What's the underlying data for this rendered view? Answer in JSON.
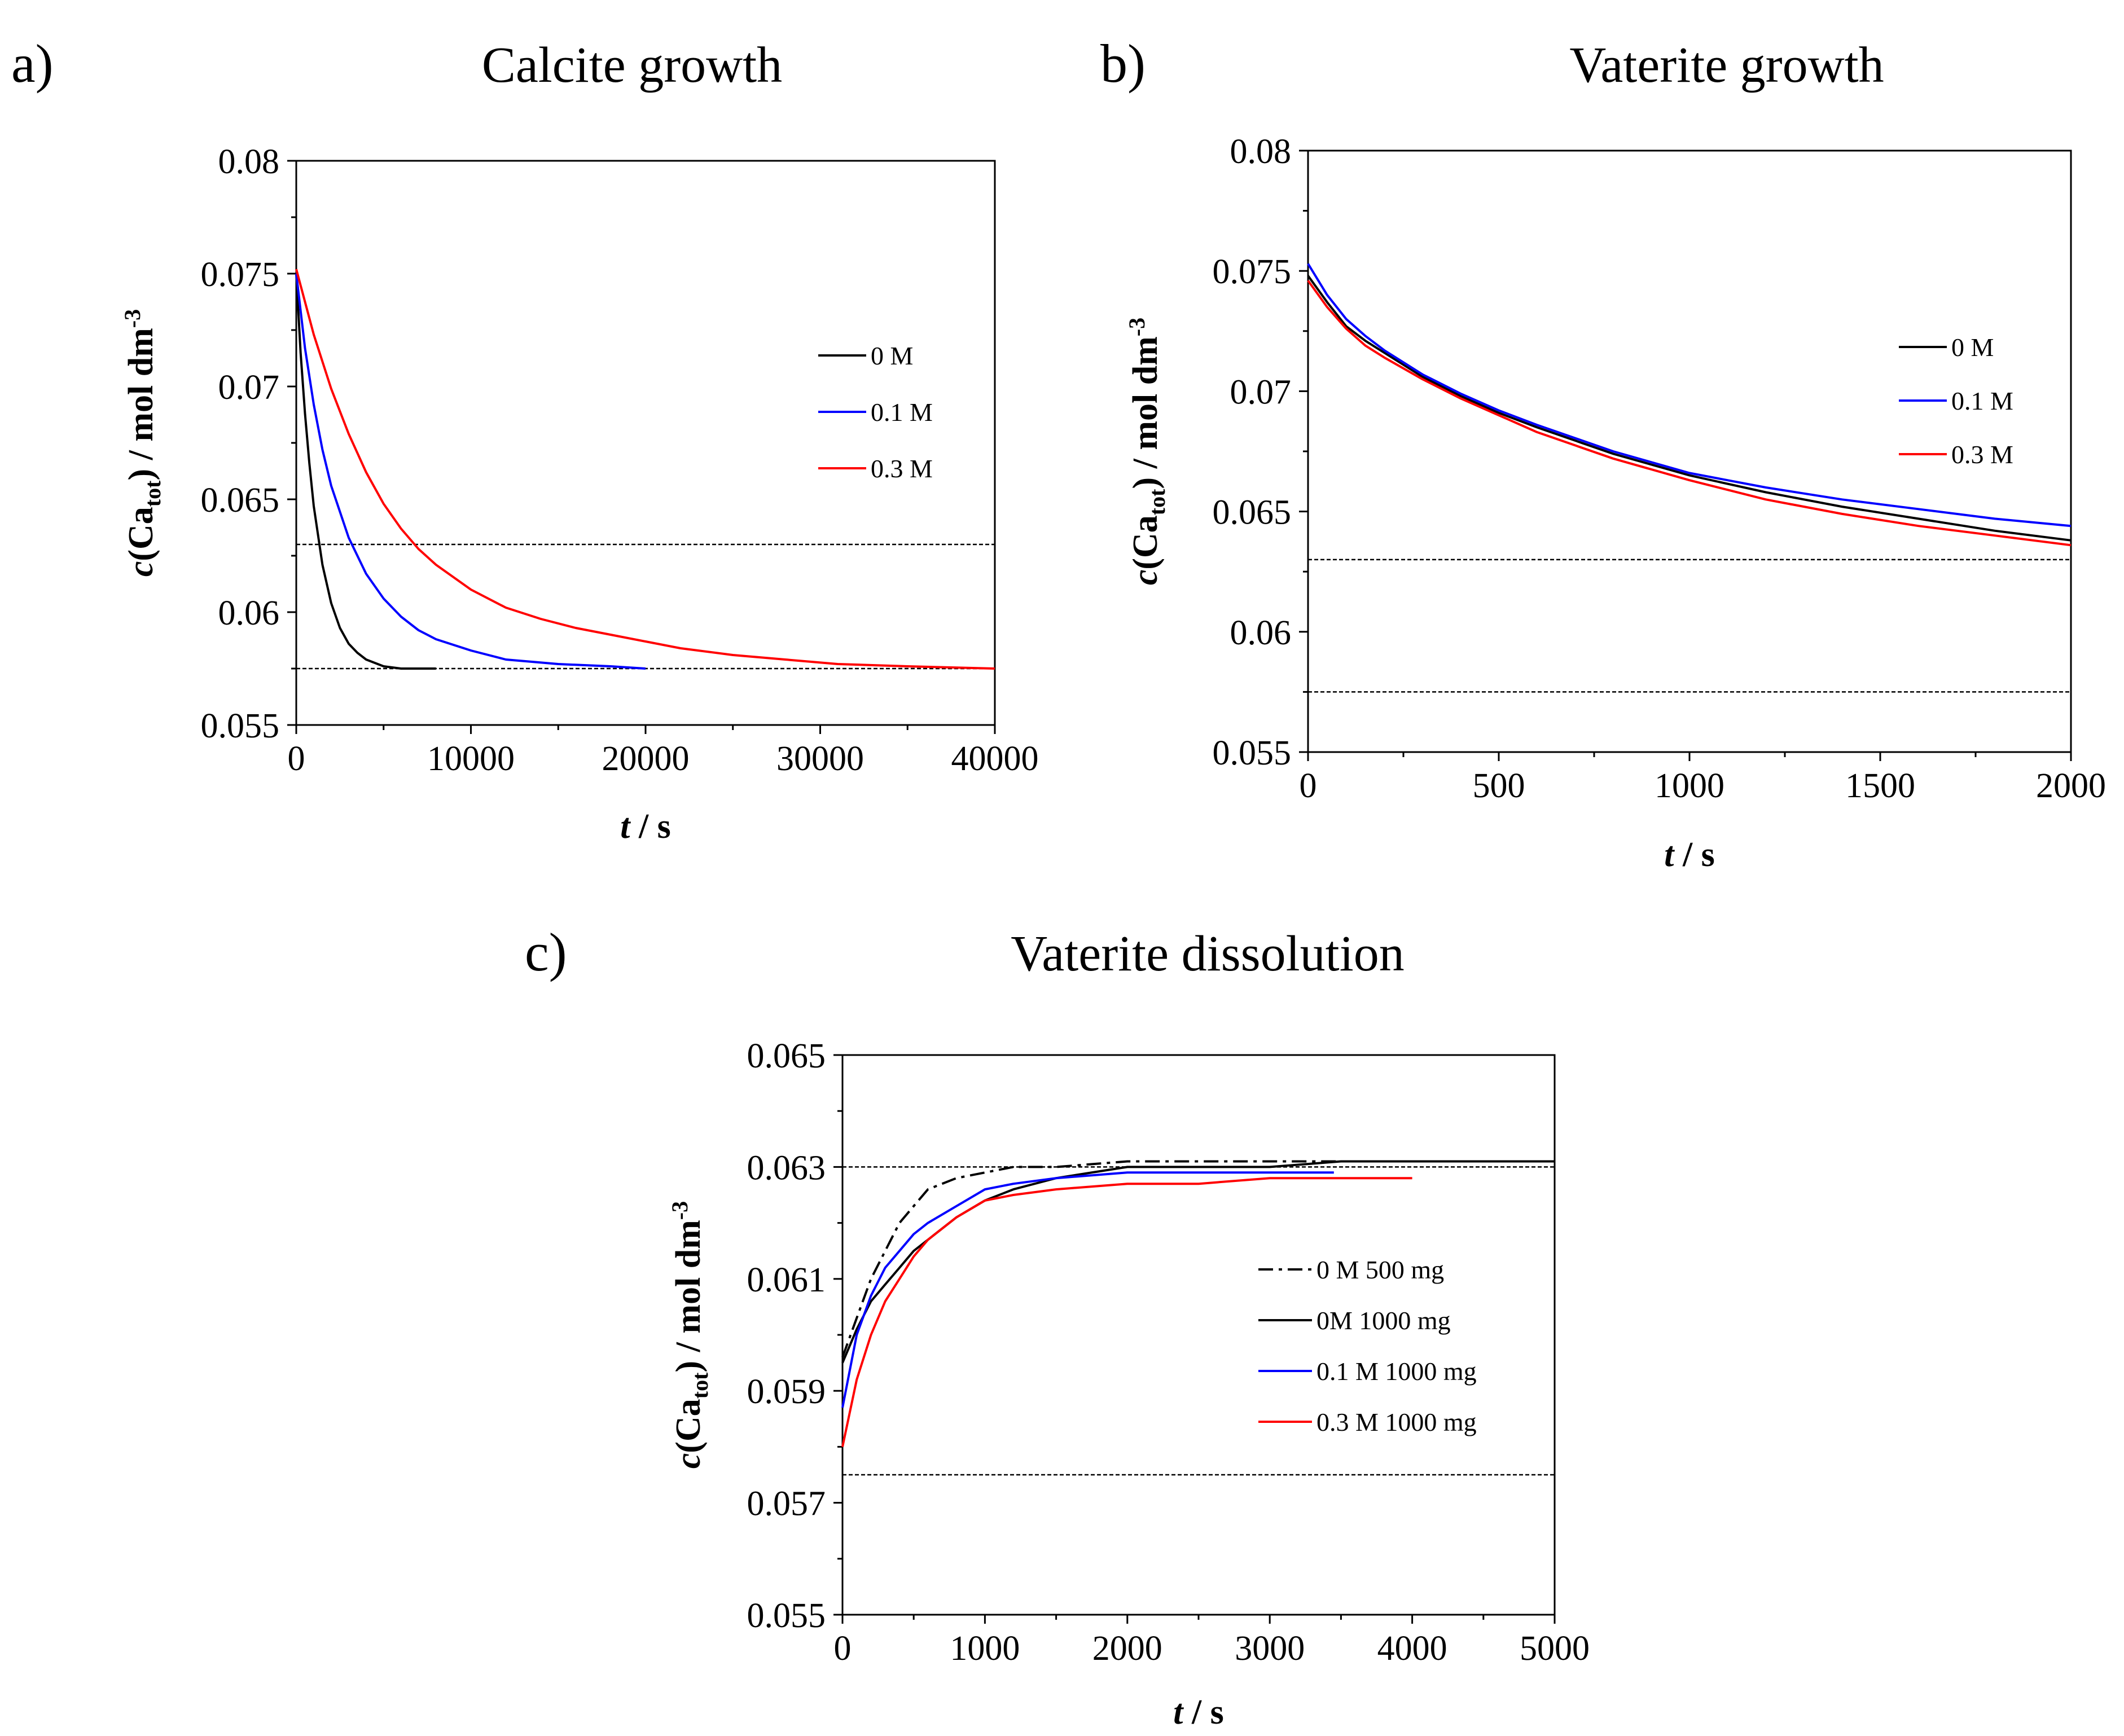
{
  "chart_data": [
    {
      "id": "a",
      "type": "line",
      "panel_label": "a)",
      "title": "Calcite growth",
      "xlabel": "t / s",
      "ylabel": "c(Ca_tot) / mol dm^-3",
      "xlim": [
        0,
        40000
      ],
      "ylim": [
        0.055,
        0.08
      ],
      "xticks": [
        "0",
        "10000",
        "20000",
        "30000",
        "40000"
      ],
      "yticks": [
        "0.055",
        "0.06",
        "0.065",
        "0.07",
        "0.075",
        "0.08"
      ],
      "legend_position": "right-middle",
      "reference_lines": [
        0.063,
        0.0575
      ],
      "series": [
        {
          "name": "0 M",
          "color": "#000000",
          "dash": "solid",
          "x": [
            0,
            250,
            500,
            750,
            1000,
            1500,
            2000,
            2500,
            3000,
            3500,
            4000,
            5000,
            6000,
            7000,
            8000
          ],
          "y": [
            0.075,
            0.0715,
            0.0688,
            0.0666,
            0.0647,
            0.0621,
            0.0604,
            0.0593,
            0.0586,
            0.0582,
            0.0579,
            0.0576,
            0.0575,
            0.0575,
            0.0575
          ]
        },
        {
          "name": "0.1 M",
          "color": "#0000ff",
          "dash": "solid",
          "x": [
            0,
            500,
            1000,
            1500,
            2000,
            3000,
            4000,
            5000,
            6000,
            7000,
            8000,
            10000,
            12000,
            15000,
            18000,
            20000
          ],
          "y": [
            0.075,
            0.0717,
            0.0692,
            0.0672,
            0.0656,
            0.0633,
            0.0617,
            0.0606,
            0.0598,
            0.0592,
            0.0588,
            0.0583,
            0.0579,
            0.0577,
            0.0576,
            0.0575
          ]
        },
        {
          "name": "0.3 M",
          "color": "#ff0000",
          "dash": "solid",
          "x": [
            0,
            1000,
            2000,
            3000,
            4000,
            5000,
            6000,
            7000,
            8000,
            10000,
            12000,
            14000,
            16000,
            18000,
            20000,
            22000,
            25000,
            28000,
            31000,
            35000,
            40000
          ],
          "y": [
            0.0752,
            0.0723,
            0.0699,
            0.0679,
            0.0662,
            0.0648,
            0.0637,
            0.0628,
            0.0621,
            0.061,
            0.0602,
            0.0597,
            0.0593,
            0.059,
            0.0587,
            0.0584,
            0.0581,
            0.0579,
            0.0577,
            0.0576,
            0.0575
          ]
        }
      ]
    },
    {
      "id": "b",
      "type": "line",
      "panel_label": "b)",
      "title": "Vaterite growth",
      "xlabel": "t / s",
      "ylabel": "c(Ca_tot) / mol dm^-3",
      "xlim": [
        0,
        2000
      ],
      "ylim": [
        0.055,
        0.08
      ],
      "xticks": [
        "0",
        "500",
        "1000",
        "1500",
        "2000"
      ],
      "yticks": [
        "0.055",
        "0.06",
        "0.065",
        "0.07",
        "0.075",
        "0.08"
      ],
      "legend_position": "right-middle",
      "reference_lines": [
        0.063,
        0.0575
      ],
      "series": [
        {
          "name": "0 M",
          "color": "#000000",
          "dash": "solid",
          "x": [
            0,
            50,
            100,
            150,
            200,
            300,
            400,
            500,
            600,
            800,
            1000,
            1200,
            1400,
            1600,
            1800,
            2000
          ],
          "y": [
            0.0748,
            0.0737,
            0.0727,
            0.0721,
            0.0716,
            0.0706,
            0.0698,
            0.0691,
            0.0685,
            0.0674,
            0.0665,
            0.0658,
            0.0652,
            0.0647,
            0.0642,
            0.0638
          ]
        },
        {
          "name": "0.1 M",
          "color": "#0000ff",
          "dash": "solid",
          "x": [
            0,
            50,
            100,
            150,
            200,
            300,
            400,
            500,
            600,
            800,
            1000,
            1200,
            1400,
            1600,
            1800,
            2000
          ],
          "y": [
            0.0753,
            0.074,
            0.073,
            0.0723,
            0.0717,
            0.0707,
            0.0699,
            0.0692,
            0.0686,
            0.0675,
            0.0666,
            0.066,
            0.0655,
            0.0651,
            0.0647,
            0.0644
          ]
        },
        {
          "name": "0.3 M",
          "color": "#ff0000",
          "dash": "solid",
          "x": [
            0,
            50,
            100,
            150,
            200,
            300,
            400,
            500,
            600,
            800,
            1000,
            1200,
            1400,
            1600,
            1800,
            2000
          ],
          "y": [
            0.0746,
            0.0735,
            0.0726,
            0.0719,
            0.0714,
            0.0705,
            0.0697,
            0.069,
            0.0683,
            0.0672,
            0.0663,
            0.0655,
            0.0649,
            0.0644,
            0.064,
            0.0636
          ]
        }
      ]
    },
    {
      "id": "c",
      "type": "line",
      "panel_label": "c)",
      "title": "Vaterite dissolution",
      "xlabel": "t / s",
      "ylabel": "c(Ca_tot) / mol dm^-3",
      "xlim": [
        0,
        5000
      ],
      "ylim": [
        0.055,
        0.065
      ],
      "xticks": [
        "0",
        "1000",
        "2000",
        "3000",
        "4000",
        "5000"
      ],
      "yticks": [
        "0.055",
        "0.057",
        "0.059",
        "0.061",
        "0.063",
        "0.065"
      ],
      "legend_position": "right-middle",
      "reference_lines": [
        0.063,
        0.0575
      ],
      "series": [
        {
          "name": "0 M 500 mg",
          "color": "#000000",
          "dash": "dashdot",
          "x": [
            0,
            100,
            200,
            300,
            400,
            500,
            600,
            800,
            1000,
            1200,
            1500,
            2000,
            2500,
            3000,
            3500
          ],
          "y": [
            0.0596,
            0.0603,
            0.061,
            0.0615,
            0.062,
            0.0623,
            0.0626,
            0.0628,
            0.0629,
            0.063,
            0.063,
            0.0631,
            0.0631,
            0.0631,
            0.0631
          ]
        },
        {
          "name": "0M 1000 mg",
          "color": "#000000",
          "dash": "solid",
          "x": [
            0,
            100,
            200,
            300,
            400,
            500,
            600,
            800,
            1000,
            1200,
            1500,
            2000,
            2500,
            3000,
            3500,
            4000,
            4500,
            5000
          ],
          "y": [
            0.0595,
            0.0601,
            0.0606,
            0.0609,
            0.0612,
            0.0615,
            0.0617,
            0.0621,
            0.0624,
            0.0626,
            0.0628,
            0.063,
            0.063,
            0.063,
            0.0631,
            0.0631,
            0.0631,
            0.0631
          ]
        },
        {
          "name": "0.1 M 1000 mg",
          "color": "#0000ff",
          "dash": "solid",
          "x": [
            0,
            100,
            200,
            300,
            400,
            500,
            600,
            800,
            1000,
            1200,
            1500,
            2000,
            2500,
            3000,
            3450
          ],
          "y": [
            0.0587,
            0.06,
            0.0607,
            0.0612,
            0.0615,
            0.0618,
            0.062,
            0.0623,
            0.0626,
            0.0627,
            0.0628,
            0.0629,
            0.0629,
            0.0629,
            0.0629
          ]
        },
        {
          "name": "0.3 M 1000 mg",
          "color": "#ff0000",
          "dash": "solid",
          "x": [
            0,
            100,
            200,
            300,
            400,
            500,
            600,
            800,
            1000,
            1200,
            1500,
            2000,
            2500,
            3000,
            3500,
            4000
          ],
          "y": [
            0.058,
            0.0592,
            0.06,
            0.0606,
            0.061,
            0.0614,
            0.0617,
            0.0621,
            0.0624,
            0.0625,
            0.0626,
            0.0627,
            0.0627,
            0.0628,
            0.0628,
            0.0628
          ]
        }
      ]
    }
  ]
}
